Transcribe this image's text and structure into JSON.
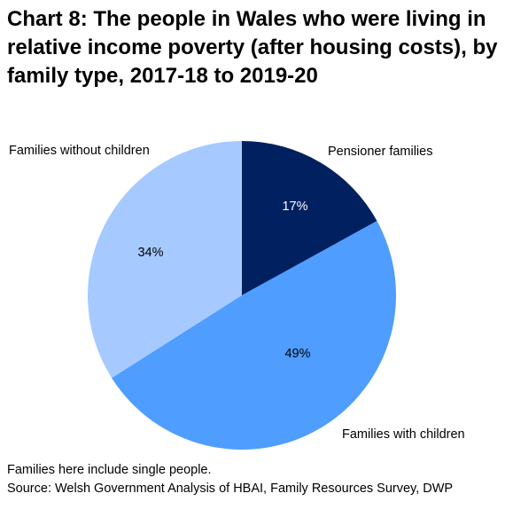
{
  "chart_data": {
    "type": "pie",
    "title": "Chart 8: The people in Wales who were living in relative income poverty (after housing costs), by family type, 2017-18 to 2019-20",
    "categories": [
      "Pensioner families",
      "Families with children",
      "Families without children"
    ],
    "values": [
      17,
      49,
      34
    ],
    "value_labels": [
      "17%",
      "49%",
      "34%"
    ],
    "unit": "%",
    "colors": [
      "#002060",
      "#4f9dfe",
      "#a6caff"
    ],
    "start_angle_deg": 0,
    "direction": "clockwise",
    "legend": "none",
    "notes": [
      "Families here include single people.",
      "Source: Welsh Government Analysis of HBAI, Family Resources Survey, DWP"
    ]
  }
}
